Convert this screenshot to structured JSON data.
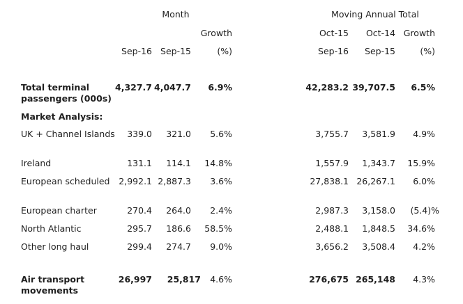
{
  "header": {
    "month_group": "Month",
    "mat_group": "Moving Annual Total",
    "growth_line1": "Growth",
    "growth_pct": "(%)",
    "col_sep16": "Sep-16",
    "col_sep15": "Sep-15",
    "col_oct15": "Oct-15",
    "col_oct14": "Oct-14",
    "col_mat_sep16": "Sep-16",
    "col_mat_sep15": "Sep-15"
  },
  "rows": [
    {
      "label": "Total terminal passengers (000s)",
      "m1": "4,327.7",
      "m2": "4,047.7",
      "mg": "6.9%",
      "a1": "42,283.2",
      "a2": "39,707.5",
      "ag": "6.5%"
    },
    {
      "label": "Market Analysis:"
    },
    {
      "label": "UK + Channel Islands",
      "m1": "339.0",
      "m2": "321.0",
      "mg": "5.6%",
      "a1": "3,755.7",
      "a2": "3,581.9",
      "ag": "4.9%"
    },
    {
      "label": "Ireland",
      "m1": "131.1",
      "m2": "114.1",
      "mg": "14.8%",
      "a1": "1,557.9",
      "a2": "1,343.7",
      "ag": "15.9%"
    },
    {
      "label": "European scheduled",
      "m1": "2,992.1",
      "m2": "2,887.3",
      "mg": "3.6%",
      "a1": "27,838.1",
      "a2": "26,267.1",
      "ag": "6.0%"
    },
    {
      "label": "European charter",
      "m1": "270.4",
      "m2": "264.0",
      "mg": "2.4%",
      "a1": "2,987.3",
      "a2": "3,158.0",
      "ag": "(5.4)%"
    },
    {
      "label": "North Atlantic",
      "m1": "295.7",
      "m2": "186.6",
      "mg": "58.5%",
      "a1": "2,488.1",
      "a2": "1,848.5",
      "ag": "34.6%"
    },
    {
      "label": "Other long haul",
      "m1": "299.4",
      "m2": "274.7",
      "mg": "9.0%",
      "a1": "3,656.2",
      "a2": "3,508.4",
      "ag": "4.2%"
    },
    {
      "label": "Air transport movements",
      "m1": "26,997",
      "m2": "25,817",
      "mg": "4.6%",
      "a1": "276,675",
      "a2": "265,148",
      "ag": "4.3%"
    }
  ]
}
